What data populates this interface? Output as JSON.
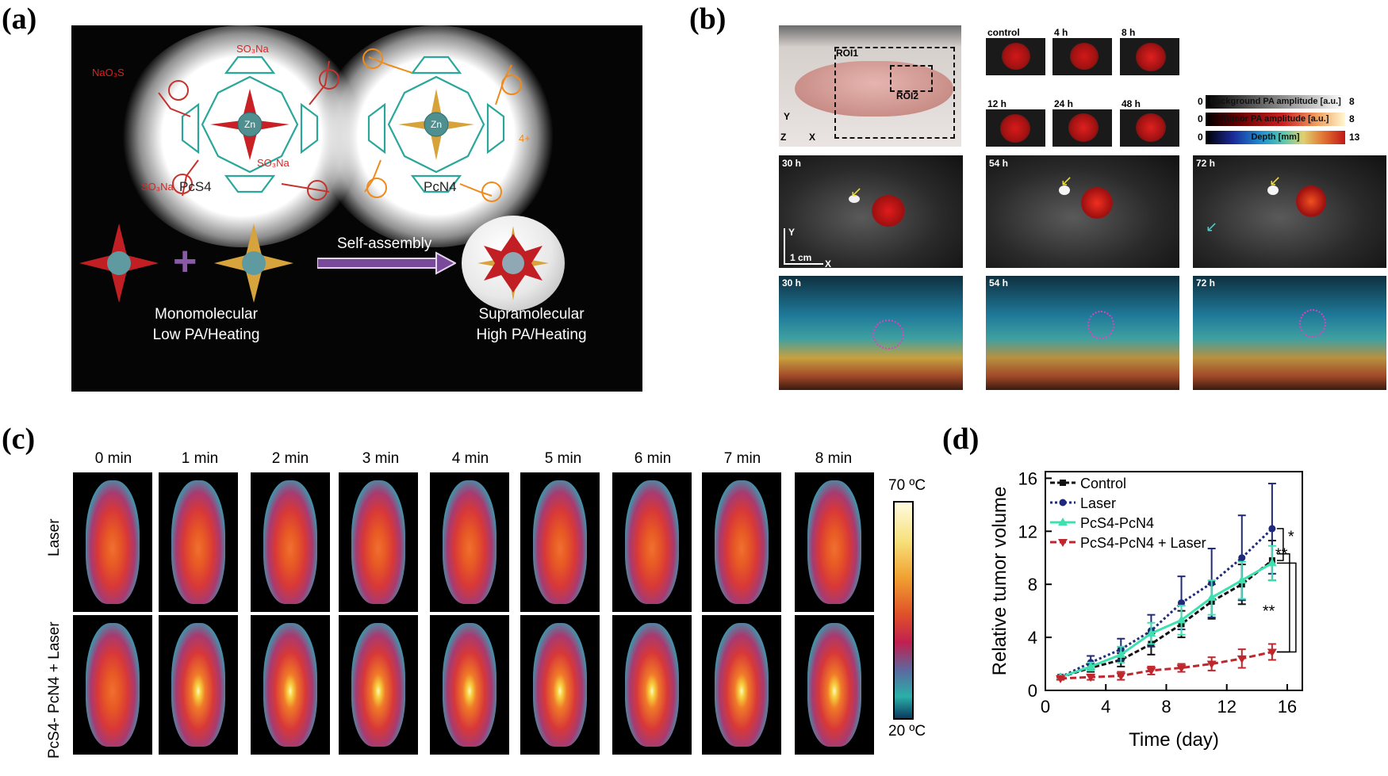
{
  "panels": {
    "a": {
      "label": "(a)",
      "pcs4_name": "PcS4",
      "pcn4_name": "PcN4",
      "pcs4_subst": [
        "NaO₃S",
        "SO₃Na",
        "SO₃Na",
        "SO₃Na"
      ],
      "pcn4_charge": "4+",
      "arrow_label": "Self-assembly",
      "plus": "+",
      "left_caption_1": "Monomolecular",
      "left_caption_2": "Low PA/Heating",
      "right_caption_1": "Supramolecular",
      "right_caption_2": "High PA/Heating"
    },
    "b": {
      "label": "(b)",
      "roi1": "ROI1",
      "roi2": "ROI2",
      "axes_small": "Z",
      "axes_x": "X",
      "axes_y": "Y",
      "top_timepoints": [
        "control",
        "4 h",
        "8 h",
        "12 h",
        "24 h",
        "48 h"
      ],
      "colorbars": [
        {
          "min": "0",
          "label": "Background PA amplitude [a.u.]",
          "max": "8"
        },
        {
          "min": "0",
          "label": "Tumor PA amplitude [a.u.]",
          "max": "8"
        },
        {
          "min": "0",
          "label": "Depth [mm]",
          "max": "13"
        }
      ],
      "big_timepoints": [
        "30 h",
        "54 h",
        "72 h"
      ],
      "scale_bar": "1 cm",
      "scale_x": "X",
      "scale_y": "Y"
    },
    "c": {
      "label": "(c)",
      "columns": [
        "0 min",
        "1 min",
        "2  min",
        "3 min",
        "4 min",
        "5  min",
        "6  min",
        "7 min",
        "8 min"
      ],
      "rows": [
        "Laser",
        "PcS4- PcN4 + Laser"
      ],
      "colorbar_max": "70 ºC",
      "colorbar_min": "20 ºC"
    },
    "d": {
      "label": "(d)"
    }
  },
  "colors": {
    "control": "#111111",
    "laser": "#1f2a7a",
    "pcs4pcn4": "#3fe0b0",
    "pcs4pcn4_laser": "#c0272d"
  },
  "chart_data": {
    "type": "line",
    "xlabel": "Time (day)",
    "ylabel": "Relative tumor volume",
    "xlim": [
      0,
      17
    ],
    "ylim": [
      0,
      16.5
    ],
    "xticks": [
      0,
      4,
      8,
      12,
      16
    ],
    "yticks": [
      0,
      4,
      8,
      12,
      16
    ],
    "x": [
      1,
      3,
      5,
      7,
      9,
      11,
      13,
      15
    ],
    "series": [
      {
        "name": "Control",
        "values": [
          1.0,
          1.7,
          2.3,
          3.5,
          5.0,
          6.7,
          8.0,
          9.8
        ],
        "errors": [
          0.1,
          0.3,
          0.5,
          0.8,
          1.0,
          1.3,
          1.5,
          1.5
        ]
      },
      {
        "name": "Laser",
        "values": [
          1.0,
          2.1,
          3.1,
          4.5,
          6.6,
          8.1,
          10.0,
          12.2
        ],
        "errors": [
          0.1,
          0.5,
          0.8,
          1.2,
          2.0,
          2.6,
          3.2,
          3.4
        ]
      },
      {
        "name": "PcS4-PcN4",
        "values": [
          1.0,
          1.8,
          2.7,
          4.3,
          5.3,
          7.0,
          8.3,
          9.6
        ],
        "errors": [
          0.1,
          0.3,
          0.6,
          0.8,
          1.1,
          1.3,
          1.4,
          1.3
        ]
      },
      {
        "name": "PcS4-PcN4 + Laser",
        "values": [
          0.9,
          1.0,
          1.1,
          1.5,
          1.7,
          2.0,
          2.4,
          2.9
        ],
        "errors": [
          0.1,
          0.2,
          0.3,
          0.3,
          0.3,
          0.5,
          0.7,
          0.6
        ]
      }
    ],
    "significance": [
      "*",
      "**",
      "**"
    ],
    "legend": "top-left",
    "grid": false
  }
}
